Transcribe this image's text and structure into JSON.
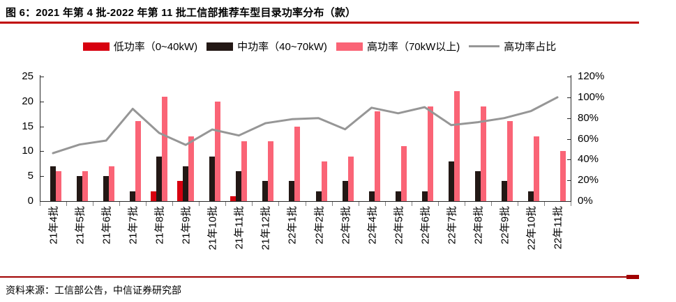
{
  "figure": {
    "title": "图 6：2021 年第 4 批-2022 年第 11 批工信部推荐车型目录功率分布（款）",
    "source": "资料来源：工信部公告，中信证券研究部"
  },
  "colors": {
    "low": "#D7000F",
    "mid": "#231815",
    "high": "#FA6476",
    "ratio_line": "#969696",
    "title_rule": "#C00000",
    "footer_rule": "#A00000"
  },
  "chart_data": {
    "type": "bar",
    "title": "2021年第4批-2022年第11批工信部推荐车型目录功率分布（款）",
    "categories": [
      "21年4批",
      "21年5批",
      "21年6批",
      "21年7批",
      "21年8批",
      "21年9批",
      "21年10批",
      "21年11批",
      "21年12批",
      "22年1批",
      "22年2批",
      "22年3批",
      "22年4批",
      "22年5批",
      "22年6批",
      "22年7批",
      "22年8批",
      "22年9批",
      "22年10批",
      "22年11批"
    ],
    "series": [
      {
        "key": "low-power",
        "name": "低功率（0~40kW)",
        "type": "bar",
        "axis": "left",
        "values": [
          0,
          0,
          0,
          0,
          2,
          4,
          0,
          1,
          0,
          0,
          0,
          0,
          0,
          0,
          0,
          0,
          0,
          0,
          0,
          0
        ]
      },
      {
        "key": "mid-power",
        "name": "中功率（40~70kW)",
        "type": "bar",
        "axis": "left",
        "values": [
          7,
          5,
          5,
          2,
          9,
          7,
          9,
          6,
          4,
          4,
          2,
          4,
          2,
          2,
          2,
          8,
          6,
          4,
          2,
          0
        ]
      },
      {
        "key": "high-power",
        "name": "高功率（70kW以上)",
        "type": "bar",
        "axis": "left",
        "values": [
          6,
          6,
          7,
          16,
          21,
          13,
          20,
          12,
          12,
          15,
          8,
          9,
          18,
          11,
          19,
          22,
          19,
          16,
          13,
          10
        ]
      },
      {
        "key": "high-power-ratio",
        "name": "高功率占比",
        "type": "line",
        "axis": "right",
        "values": [
          46.2,
          54.5,
          58.3,
          88.9,
          65.6,
          54.2,
          69.0,
          63.2,
          75.0,
          78.9,
          80.0,
          69.2,
          90.0,
          84.6,
          90.5,
          73.3,
          76.0,
          80.0,
          86.7,
          100.0
        ]
      }
    ],
    "left_axis": {
      "min": 0,
      "max": 25,
      "ticks": [
        0,
        5,
        10,
        15,
        20,
        25
      ]
    },
    "right_axis": {
      "min": 0,
      "max": 120,
      "tick_labels": [
        "0%",
        "20%",
        "40%",
        "60%",
        "80%",
        "100%",
        "120%"
      ],
      "tick_values": [
        0,
        20,
        40,
        60,
        80,
        100,
        120
      ]
    },
    "legend_position": "top",
    "grid": false
  }
}
